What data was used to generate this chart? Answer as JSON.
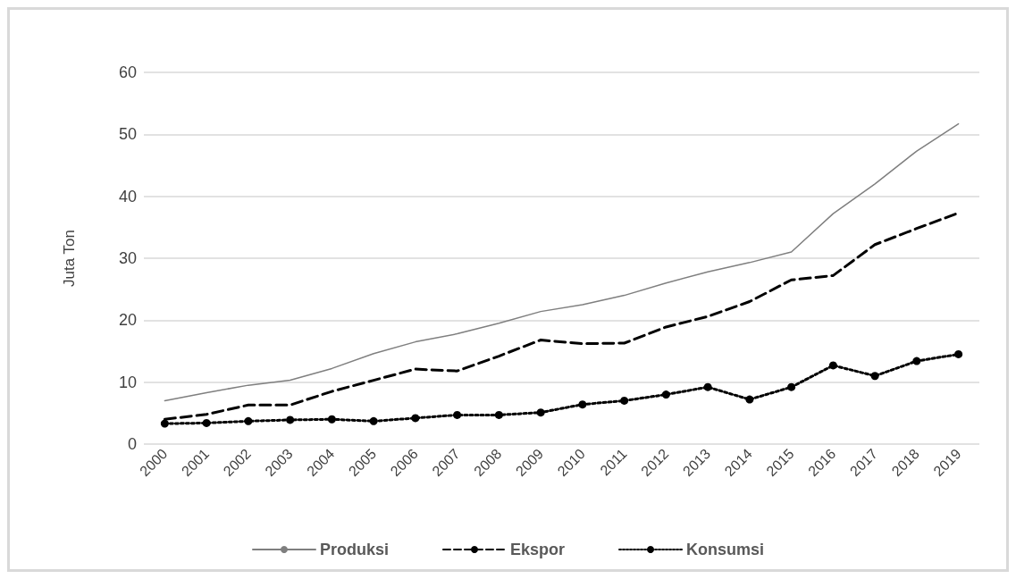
{
  "chart_data": {
    "type": "line",
    "ylabel": "Juta Ton",
    "categories": [
      "2000",
      "2001",
      "2002",
      "2003",
      "2004",
      "2005",
      "2006",
      "2007",
      "2008",
      "2009",
      "2010",
      "2011",
      "2012",
      "2013",
      "2014",
      "2015",
      "2016",
      "2017",
      "2018",
      "2019"
    ],
    "series": [
      {
        "name": "Produksi",
        "color": "#7f7f7f",
        "line_style": "solid",
        "marker": "none",
        "values": [
          7.0,
          8.3,
          9.5,
          10.3,
          12.2,
          14.6,
          16.5,
          17.8,
          19.5,
          21.4,
          22.5,
          24.0,
          26.0,
          27.8,
          29.3,
          31.0,
          37.2,
          42.0,
          47.3,
          51.7
        ]
      },
      {
        "name": "Ekspor",
        "color": "#000000",
        "line_style": "dashed",
        "marker": "none",
        "values": [
          4.0,
          4.8,
          6.3,
          6.3,
          8.5,
          10.3,
          12.1,
          11.8,
          14.2,
          16.8,
          16.2,
          16.3,
          18.9,
          20.6,
          23.0,
          26.5,
          27.2,
          32.2,
          34.8,
          37.3
        ]
      },
      {
        "name": "Konsumsi",
        "color": "#000000",
        "line_style": "dotted",
        "marker": "circle",
        "values": [
          3.3,
          3.4,
          3.7,
          3.9,
          4.0,
          3.7,
          4.2,
          4.7,
          4.7,
          5.1,
          6.4,
          7.0,
          8.0,
          9.2,
          7.2,
          9.2,
          12.7,
          11.0,
          13.4,
          14.5
        ]
      }
    ],
    "ylim": [
      0,
      60
    ],
    "yticks": [
      0,
      10,
      20,
      30,
      40,
      50,
      60
    ],
    "grid": "y",
    "legend": "bottom"
  }
}
